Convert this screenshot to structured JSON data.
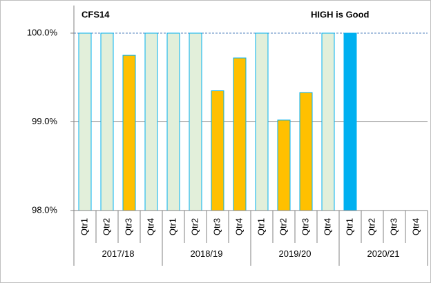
{
  "chart_data": {
    "type": "bar",
    "title": "CFS14",
    "annotation": "HIGH is Good",
    "categories": [
      "Qtr1",
      "Qtr2",
      "Qtr3",
      "Qtr4",
      "Qtr1",
      "Qtr2",
      "Qtr3",
      "Qtr4",
      "Qtr1",
      "Qtr2",
      "Qtr3",
      "Qtr4",
      "Qtr1",
      "Qtr2",
      "Qtr3",
      "Qtr4"
    ],
    "groups": [
      "2017/18",
      "2018/19",
      "2019/20",
      "2020/21"
    ],
    "values": [
      100,
      100,
      99.75,
      100,
      100,
      100,
      99.35,
      99.72,
      100,
      99.02,
      99.33,
      100,
      100,
      null,
      null,
      null
    ],
    "colors": [
      "#e2efda",
      "#e2efda",
      "#ffc000",
      "#e2efda",
      "#e2efda",
      "#e2efda",
      "#ffc000",
      "#ffc000",
      "#e2efda",
      "#ffc000",
      "#ffc000",
      "#e2efda",
      "#00b0f0",
      "#e2efda",
      "#e2efda",
      "#e2efda"
    ],
    "border_color": "#00b0f0",
    "ylim": [
      98,
      100
    ],
    "yticks": [
      {
        "value": 98,
        "label": "98.0%"
      },
      {
        "value": 99,
        "label": "99.0%"
      },
      {
        "value": 100,
        "label": "100.0%"
      }
    ],
    "grid": true
  }
}
